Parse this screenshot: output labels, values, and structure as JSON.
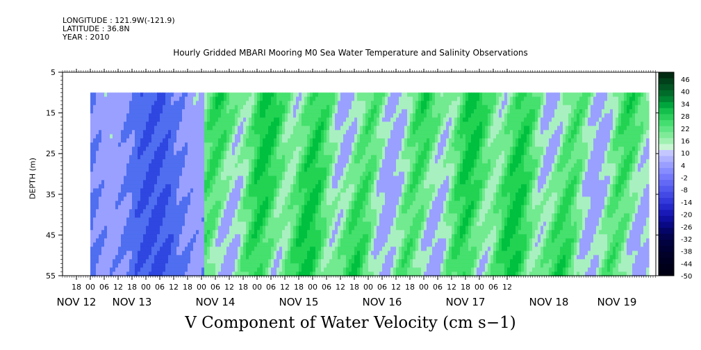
{
  "header": {
    "longitude": "LONGITUDE : 121.9W(-121.9)",
    "latitude": "LATITUDE : 36.8N",
    "year": "YEAR : 2010"
  },
  "chart_data": {
    "type": "heatmap",
    "title": "Hourly Gridded MBARI Mooring M0 Sea Water Temperature and Salinity Observations",
    "variable_title": "V Component of Water Velocity (cm s−1)",
    "ylabel": "DEPTH (m)",
    "xlabel": "",
    "y_range": [
      5,
      55
    ],
    "y_inverted": true,
    "y_ticks": [
      "5",
      "15",
      "25",
      "35",
      "45",
      "55"
    ],
    "data_depth_range": [
      10,
      55
    ],
    "x_hour_labels": [
      "18",
      "00",
      "06",
      "12",
      "18",
      "00",
      "06",
      "12",
      "18",
      "00",
      "06",
      "12",
      "18",
      "00",
      "06",
      "12",
      "18",
      "00",
      "06",
      "12",
      "18",
      "00",
      "06",
      "12",
      "18",
      "00",
      "06",
      "12",
      "18",
      "00",
      "06",
      "12"
    ],
    "x_day_labels": [
      "NOV 12",
      "NOV 13",
      "NOV 14",
      "NOV 15",
      "NOV 16",
      "NOV 17",
      "NOV 18",
      "NOV 19"
    ],
    "colorbar": {
      "labels": [
        "46",
        "40",
        "34",
        "28",
        "22",
        "16",
        "10",
        "4",
        "-2",
        "-8",
        "-14",
        "-20",
        "-26",
        "-32",
        "-38",
        "-44",
        "-50"
      ],
      "range": [
        -50,
        52
      ],
      "step": 3
    },
    "field_description": "mostly -20..-2 (blue) early Nov 12-13, then alternating 4..22 (green) with weaker negative bands through Nov 19",
    "colors": {
      "negative": "#8c8cff",
      "strong_negative": "#3355ee",
      "positive": "#22cc55",
      "strong_positive": "#009933"
    }
  }
}
